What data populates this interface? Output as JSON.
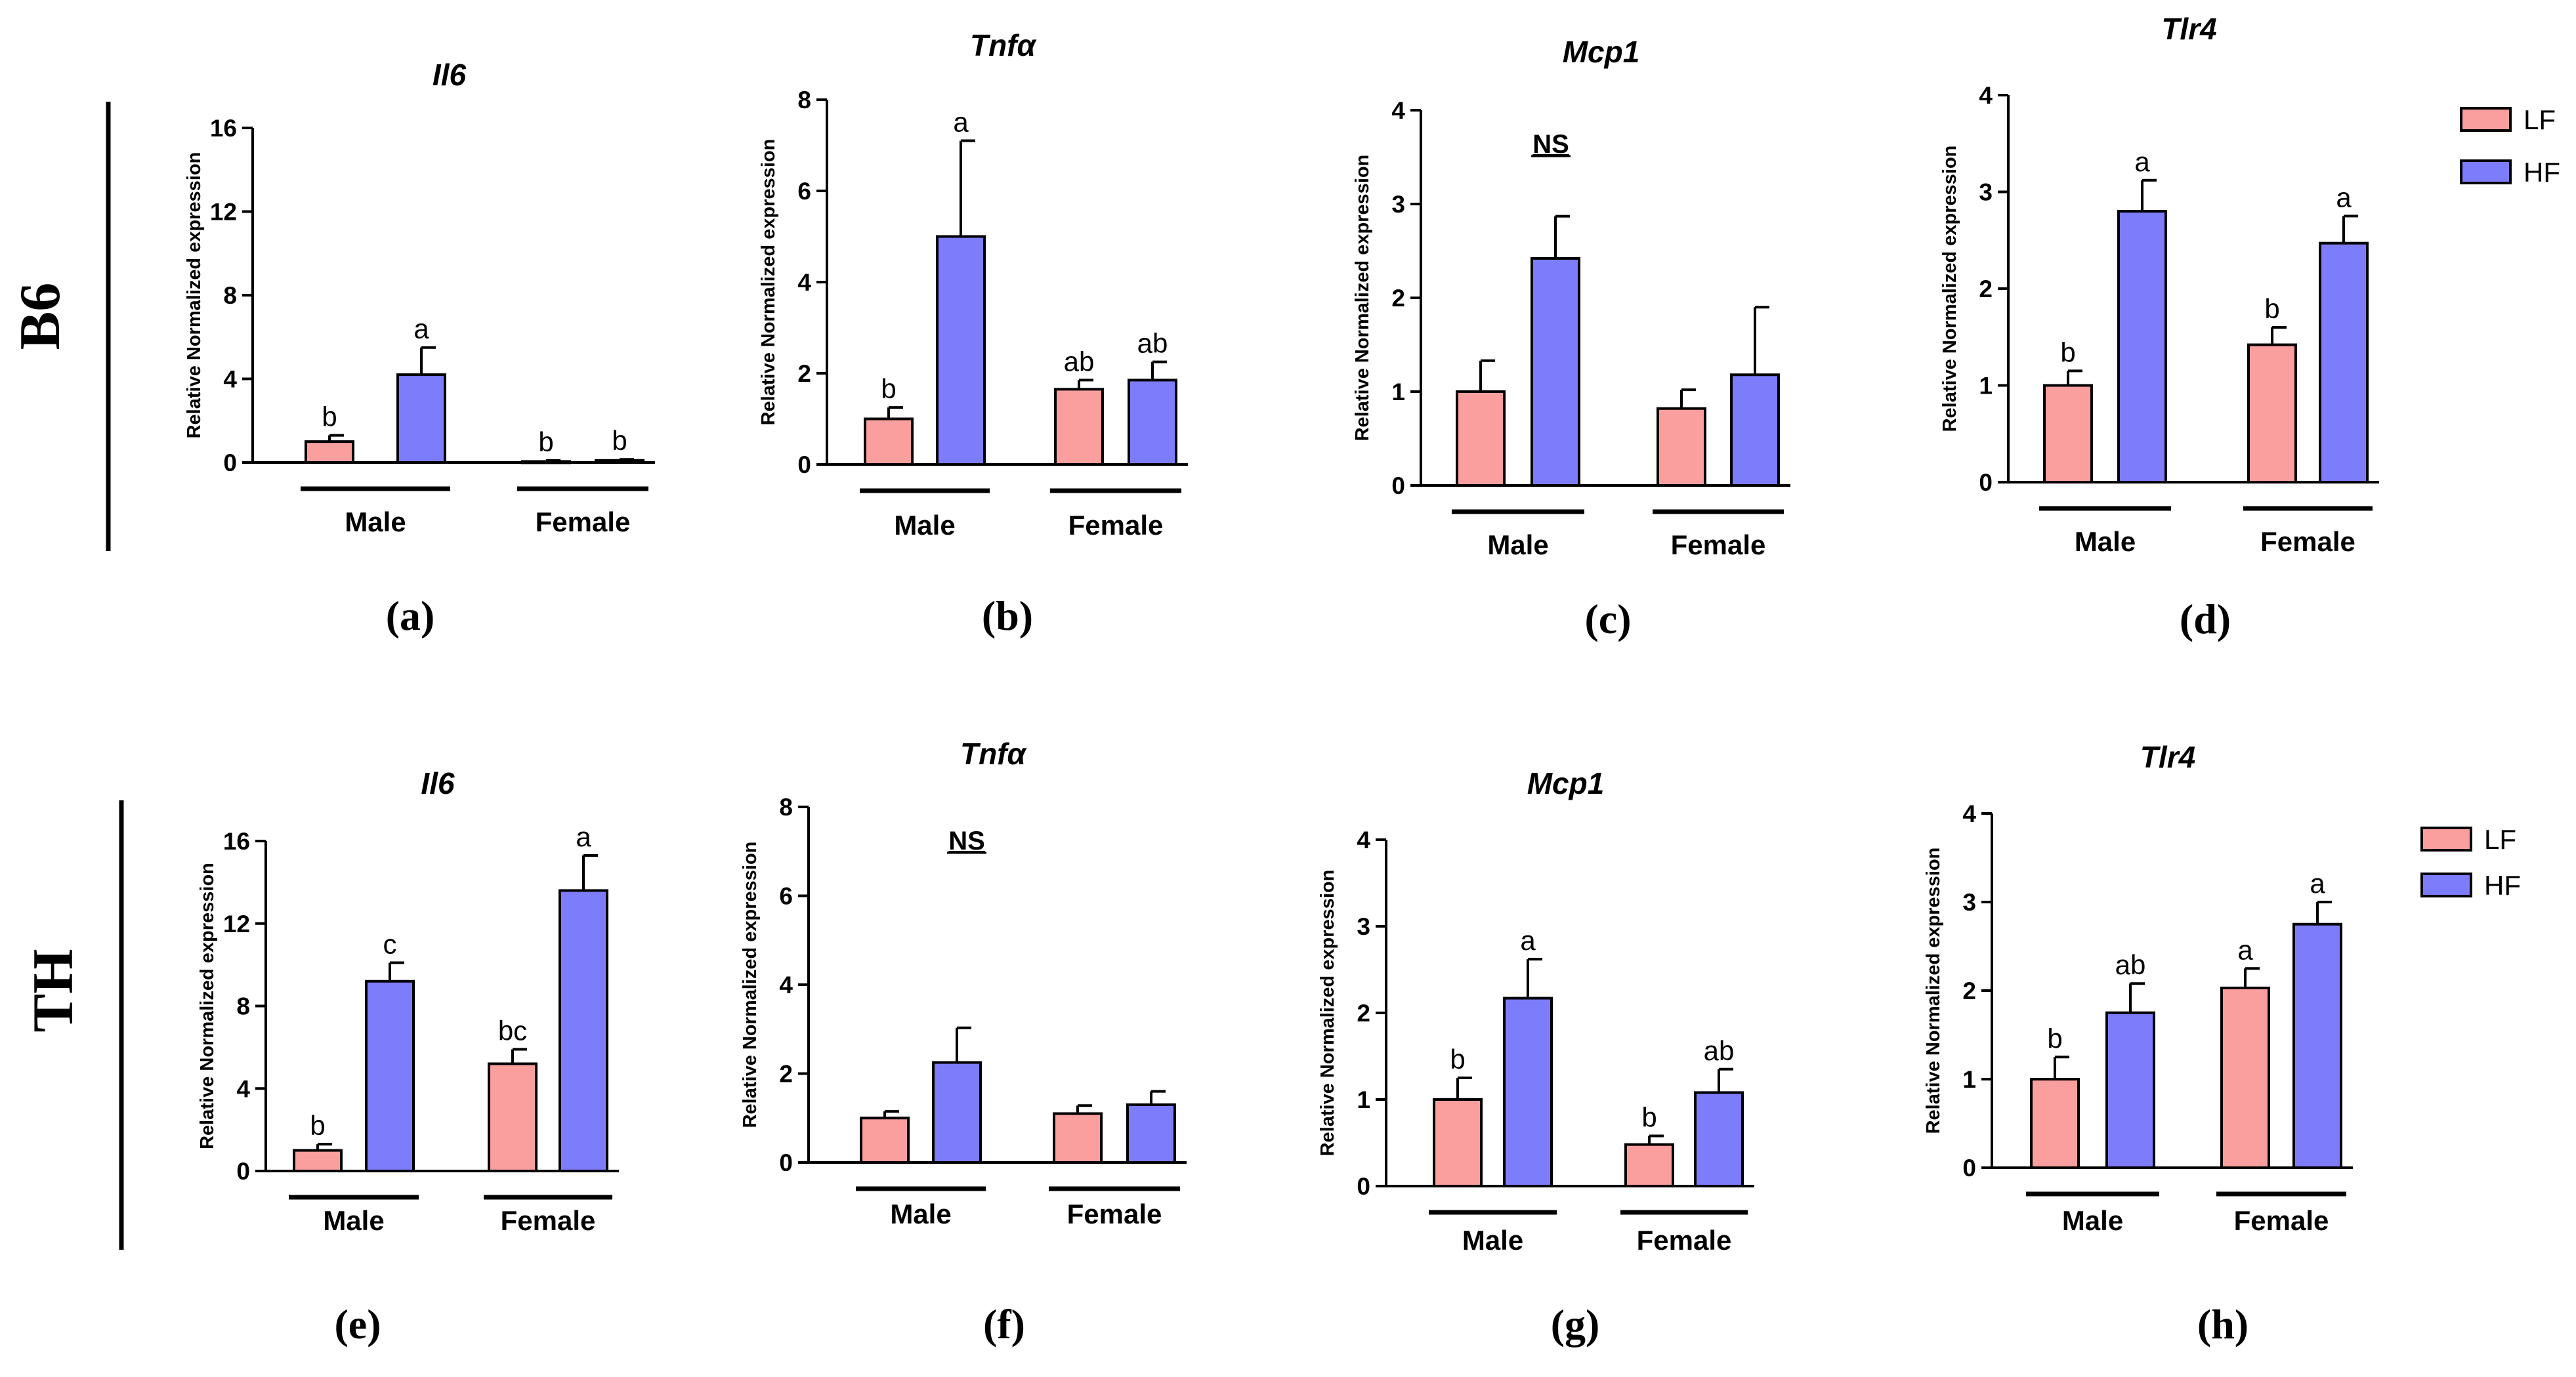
{
  "colors": {
    "LF": "#fa9e9e",
    "HF": "#7d7dfc",
    "axis": "#000000"
  },
  "row_labels": [
    "B6",
    "TH"
  ],
  "legend": {
    "labels": [
      "LF",
      "HF"
    ]
  },
  "chart_data": [
    {
      "type": "bar",
      "caption": "(a)",
      "title": "Il6",
      "ylabel": "Relative Normalized expression",
      "ylim": [
        0,
        16
      ],
      "yticks": [
        "0",
        "4",
        "8",
        "12",
        "16"
      ],
      "groups": [
        "Male",
        "Female"
      ],
      "series": [
        {
          "name": "LF",
          "values": [
            1.0,
            0.05
          ],
          "errors": [
            0.3,
            0.05
          ],
          "sig": [
            "b",
            "b"
          ]
        },
        {
          "name": "HF",
          "values": [
            4.2,
            0.1
          ],
          "errors": [
            1.3,
            0.05
          ],
          "sig": [
            "a",
            "b"
          ]
        }
      ]
    },
    {
      "type": "bar",
      "caption": "(b)",
      "title": "Tnfα",
      "ylabel": "Relative Normalized expression",
      "ylim": [
        0,
        8
      ],
      "yticks": [
        "0",
        "2",
        "4",
        "6",
        "8"
      ],
      "groups": [
        "Male",
        "Female"
      ],
      "series": [
        {
          "name": "LF",
          "values": [
            1.0,
            1.65
          ],
          "errors": [
            0.25,
            0.2
          ],
          "sig": [
            "b",
            "ab"
          ]
        },
        {
          "name": "HF",
          "values": [
            5.0,
            1.85
          ],
          "errors": [
            2.1,
            0.4
          ],
          "sig": [
            "a",
            "ab"
          ]
        }
      ]
    },
    {
      "type": "bar",
      "caption": "(c)",
      "title": "Mcp1",
      "ylabel": "Relative Normalized expression",
      "ylim": [
        0,
        4
      ],
      "yticks": [
        "0",
        "1",
        "2",
        "3",
        "4"
      ],
      "groups": [
        "Male",
        "Female"
      ],
      "note": "NS",
      "series": [
        {
          "name": "LF",
          "values": [
            1.0,
            0.82
          ],
          "errors": [
            0.33,
            0.2
          ],
          "sig": [
            "",
            ""
          ]
        },
        {
          "name": "HF",
          "values": [
            2.42,
            1.18
          ],
          "errors": [
            0.45,
            0.72
          ],
          "sig": [
            "",
            ""
          ]
        }
      ]
    },
    {
      "type": "bar",
      "caption": "(d)",
      "title": "Tlr4",
      "ylabel": "Relative Normalized expression",
      "ylim": [
        0,
        4
      ],
      "yticks": [
        "0",
        "1",
        "2",
        "3",
        "4"
      ],
      "groups": [
        "Male",
        "Female"
      ],
      "series": [
        {
          "name": "LF",
          "values": [
            1.0,
            1.42
          ],
          "errors": [
            0.15,
            0.18
          ],
          "sig": [
            "b",
            "b"
          ]
        },
        {
          "name": "HF",
          "values": [
            2.8,
            2.47
          ],
          "errors": [
            0.32,
            0.28
          ],
          "sig": [
            "a",
            "a"
          ]
        }
      ]
    },
    {
      "type": "bar",
      "caption": "(e)",
      "title": "Il6",
      "ylabel": "Relative Normalized expression",
      "ylim": [
        0,
        16
      ],
      "yticks": [
        "0",
        "4",
        "8",
        "12",
        "16"
      ],
      "groups": [
        "Male",
        "Female"
      ],
      "series": [
        {
          "name": "LF",
          "values": [
            1.0,
            5.2
          ],
          "errors": [
            0.3,
            0.7
          ],
          "sig": [
            "b",
            "bc"
          ]
        },
        {
          "name": "HF",
          "values": [
            9.2,
            13.6
          ],
          "errors": [
            0.9,
            1.7
          ],
          "sig": [
            "c",
            "a"
          ]
        }
      ]
    },
    {
      "type": "bar",
      "caption": "(f)",
      "title": "Tnfα",
      "ylabel": "Relative Normalized expression",
      "ylim": [
        0,
        8
      ],
      "yticks": [
        "0",
        "2",
        "4",
        "6",
        "8"
      ],
      "groups": [
        "Male",
        "Female"
      ],
      "note": "NS",
      "series": [
        {
          "name": "LF",
          "values": [
            1.0,
            1.1
          ],
          "errors": [
            0.15,
            0.18
          ],
          "sig": [
            "",
            ""
          ]
        },
        {
          "name": "HF",
          "values": [
            2.25,
            1.3
          ],
          "errors": [
            0.78,
            0.3
          ],
          "sig": [
            "",
            ""
          ]
        }
      ]
    },
    {
      "type": "bar",
      "caption": "(g)",
      "title": "Mcp1",
      "ylabel": "Relative Normalized expression",
      "ylim": [
        0,
        4
      ],
      "yticks": [
        "0",
        "1",
        "2",
        "3",
        "4"
      ],
      "groups": [
        "Male",
        "Female"
      ],
      "series": [
        {
          "name": "LF",
          "values": [
            1.0,
            0.48
          ],
          "errors": [
            0.25,
            0.1
          ],
          "sig": [
            "b",
            "b"
          ]
        },
        {
          "name": "HF",
          "values": [
            2.17,
            1.08
          ],
          "errors": [
            0.45,
            0.27
          ],
          "sig": [
            "a",
            "ab"
          ]
        }
      ]
    },
    {
      "type": "bar",
      "caption": "(h)",
      "title": "Tlr4",
      "ylabel": "Relative Normalized expression",
      "ylim": [
        0,
        4
      ],
      "yticks": [
        "0",
        "1",
        "2",
        "3",
        "4"
      ],
      "groups": [
        "Male",
        "Female"
      ],
      "series": [
        {
          "name": "LF",
          "values": [
            1.0,
            2.03
          ],
          "errors": [
            0.25,
            0.22
          ],
          "sig": [
            "b",
            "a"
          ]
        },
        {
          "name": "HF",
          "values": [
            1.75,
            2.75
          ],
          "errors": [
            0.33,
            0.25
          ],
          "sig": [
            "ab",
            "a"
          ]
        }
      ]
    }
  ]
}
